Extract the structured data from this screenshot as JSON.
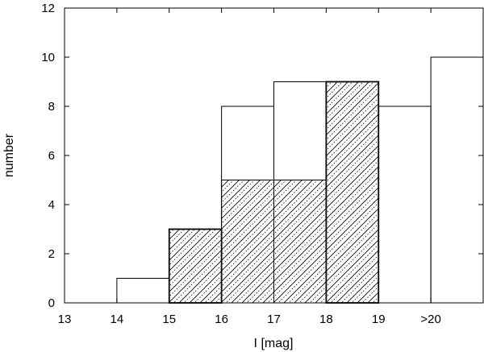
{
  "chart_data": {
    "type": "bar",
    "title": "",
    "xlabel": "I [mag]",
    "ylabel": "number",
    "xlim": [
      13,
      21
    ],
    "ylim": [
      0,
      12
    ],
    "x_ticks": [
      {
        "value": 13,
        "label": "13"
      },
      {
        "value": 14,
        "label": "14"
      },
      {
        "value": 15,
        "label": "15"
      },
      {
        "value": 16,
        "label": "16"
      },
      {
        "value": 17,
        "label": "17"
      },
      {
        "value": 18,
        "label": "18"
      },
      {
        "value": 19,
        "label": "19"
      },
      {
        "value": 20,
        "label": ">20"
      }
    ],
    "y_ticks": [
      0,
      2,
      4,
      6,
      8,
      10,
      12
    ],
    "bins": [
      {
        "x0": 13,
        "x1": 14
      },
      {
        "x0": 14,
        "x1": 15
      },
      {
        "x0": 15,
        "x1": 16
      },
      {
        "x0": 16,
        "x1": 17
      },
      {
        "x0": 17,
        "x1": 18
      },
      {
        "x0": 18,
        "x1": 19
      },
      {
        "x0": 19,
        "x1": 20
      },
      {
        "x0": 20,
        "x1": 21
      }
    ],
    "series": [
      {
        "style": "open",
        "values": [
          0,
          1,
          3,
          8,
          9,
          9,
          8,
          10
        ]
      },
      {
        "style": "hatched",
        "values": [
          0,
          0,
          3,
          5,
          5,
          9,
          0,
          0
        ]
      }
    ],
    "grid": false,
    "legend": "none"
  }
}
